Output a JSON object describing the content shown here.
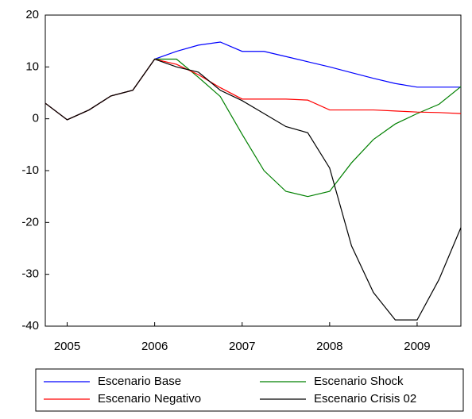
{
  "chart_data": {
    "type": "line",
    "x": [
      2005,
      2005.25,
      2005.5,
      2005.75,
      2006,
      2006.25,
      2006.5,
      2006.75,
      2007,
      2007.25,
      2007.5,
      2007.75,
      2008,
      2008.25,
      2008.5,
      2008.75,
      2009,
      2009.25,
      2009.5,
      2009.75
    ],
    "xlim": [
      2005,
      2009.75
    ],
    "xticks": [
      {
        "value": 2005.25,
        "label": "2005"
      },
      {
        "value": 2006.25,
        "label": "2006"
      },
      {
        "value": 2007.25,
        "label": "2007"
      },
      {
        "value": 2008.25,
        "label": "2008"
      },
      {
        "value": 2009.25,
        "label": "2009"
      }
    ],
    "ylim": [
      -40,
      20
    ],
    "yticks": [
      -40,
      -30,
      -20,
      -10,
      0,
      10,
      20
    ],
    "grid": false,
    "legend": "bottom",
    "series": [
      {
        "name": "Escenario Base",
        "color": "#0000ff",
        "values": [
          3,
          -0.2,
          1.7,
          4.4,
          5.5,
          11.5,
          13,
          14.2,
          14.8,
          13,
          13,
          12,
          11,
          10,
          8.9,
          7.8,
          6.8,
          6.1,
          6.1,
          6.1
        ]
      },
      {
        "name": "Escenario Shock",
        "color": "#008000",
        "values": [
          3,
          -0.2,
          1.7,
          4.4,
          5.5,
          11.5,
          11.5,
          8,
          4.3,
          -3,
          -10,
          -14,
          -15,
          -14,
          -8.5,
          -4,
          -1,
          1,
          2.8,
          6.2
        ]
      },
      {
        "name": "Escenario Negativo",
        "color": "#ff0000",
        "values": [
          3,
          -0.2,
          1.7,
          4.4,
          5.5,
          11.5,
          10.5,
          8.5,
          6,
          3.8,
          3.8,
          3.8,
          3.6,
          1.7,
          1.7,
          1.7,
          1.5,
          1.3,
          1.2,
          1
        ]
      },
      {
        "name": "Escenario Crisis 02",
        "color": "#000000",
        "values": [
          3,
          -0.2,
          1.7,
          4.4,
          5.5,
          11.5,
          10,
          9,
          5.5,
          3.5,
          1,
          -1.5,
          -2.7,
          -9.5,
          -24.5,
          -33.5,
          -38.8,
          -38.8,
          -31,
          -21
        ]
      }
    ]
  }
}
